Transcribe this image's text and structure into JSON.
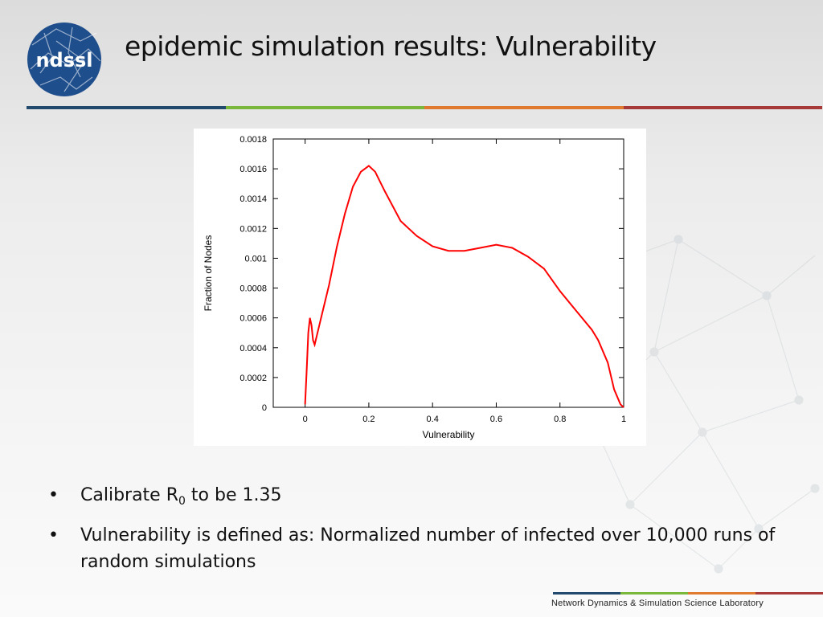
{
  "title": "epidemic simulation results: Vulnerability",
  "logo": {
    "text": "ndssl",
    "icon": "ndssl-network-logo"
  },
  "colors": {
    "rule": [
      "#22496e",
      "#7ab83c",
      "#e07a2e",
      "#a83a3a"
    ],
    "curve": "#ff0000"
  },
  "chart_data": {
    "type": "line",
    "xlabel": "Vulnerability",
    "ylabel": "Fraction of Nodes",
    "xlim": [
      -0.1,
      1.0
    ],
    "ylim": [
      0,
      0.0018
    ],
    "xticks": [
      "0",
      "0.2",
      "0.4",
      "0.6",
      "0.8",
      "1"
    ],
    "yticks": [
      "0",
      "0.0002",
      "0.0004",
      "0.0006",
      "0.0008",
      "0.001",
      "0.0012",
      "0.0014",
      "0.0016",
      "0.0018"
    ],
    "grid": false,
    "series": [
      {
        "color": "#ff0000",
        "x": [
          0,
          0.005,
          0.01,
          0.015,
          0.02,
          0.025,
          0.03,
          0.05,
          0.075,
          0.1,
          0.125,
          0.15,
          0.175,
          0.2,
          0.22,
          0.25,
          0.3,
          0.35,
          0.4,
          0.45,
          0.5,
          0.55,
          0.6,
          0.65,
          0.7,
          0.75,
          0.8,
          0.85,
          0.9,
          0.92,
          0.95,
          0.97,
          0.99,
          1.0
        ],
        "y": [
          2e-05,
          0.00025,
          0.0005,
          0.0006,
          0.00055,
          0.00045,
          0.00042,
          0.0006,
          0.00082,
          0.00108,
          0.0013,
          0.00148,
          0.00158,
          0.00162,
          0.00158,
          0.00145,
          0.00125,
          0.00115,
          0.00108,
          0.00105,
          0.00105,
          0.00107,
          0.00109,
          0.00107,
          0.00101,
          0.00093,
          0.00078,
          0.00065,
          0.00052,
          0.00045,
          0.0003,
          0.00012,
          2e-05,
          0.0
        ]
      }
    ]
  },
  "bullets": {
    "b1": {
      "before": "Calibrate R",
      "sub": "0",
      "after": " to be 1.35"
    },
    "b2": "Vulnerability is defined as: Normalized number of infected over 10,000 runs of random simulations",
    "marker": "•"
  },
  "footer": "Network Dynamics & Simulation Science Laboratory"
}
